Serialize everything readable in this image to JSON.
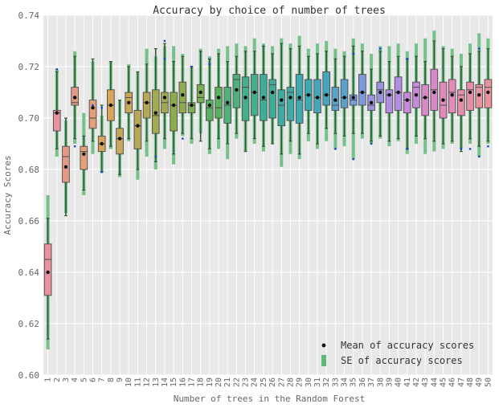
{
  "chart_data": {
    "type": "box",
    "title": "Accuracy by choice of number of trees",
    "xlabel": "Number of trees in the Random Forest",
    "ylabel": "Accuracy Scores",
    "ylim": [
      0.6,
      0.74
    ],
    "yticks": [
      "0.60",
      "0.62",
      "0.64",
      "0.66",
      "0.68",
      "0.70",
      "0.72",
      "0.74"
    ],
    "grid": true,
    "legend_position": "bottom-right",
    "legend": [
      {
        "label": "Mean of accuracy scores",
        "marker": "dot"
      },
      {
        "label": "SE of accuracy scores",
        "marker": "bar"
      }
    ],
    "series": [
      {
        "trees": "1",
        "q1": 0.631,
        "median": 0.645,
        "q3": 0.651,
        "wlo": 0.614,
        "whi": 0.661,
        "mean": 0.64,
        "se_lo": 0.61,
        "se_hi": 0.67,
        "color": "#e8939e"
      },
      {
        "trees": "2",
        "q1": 0.695,
        "median": 0.702,
        "q3": 0.703,
        "wlo": 0.688,
        "whi": 0.718,
        "mean": 0.702,
        "se_lo": 0.685,
        "se_hi": 0.719,
        "color": "#e8939e"
      },
      {
        "trees": "3",
        "q1": 0.675,
        "median": 0.685,
        "q3": 0.689,
        "wlo": 0.662,
        "whi": 0.7,
        "mean": 0.681,
        "se_lo": 0.663,
        "se_hi": 0.699,
        "color": "#e29a86"
      },
      {
        "trees": "4",
        "q1": 0.705,
        "median": 0.706,
        "q3": 0.712,
        "wlo": 0.692,
        "whi": 0.724,
        "mean": 0.708,
        "se_lo": 0.69,
        "se_hi": 0.726,
        "color": "#e29a86"
      },
      {
        "trees": "5",
        "q1": 0.68,
        "median": 0.687,
        "q3": 0.689,
        "wlo": 0.672,
        "whi": 0.693,
        "mean": 0.686,
        "se_lo": 0.67,
        "se_hi": 0.702,
        "color": "#e3a07a"
      },
      {
        "trees": "6",
        "q1": 0.696,
        "median": 0.7,
        "q3": 0.707,
        "wlo": 0.691,
        "whi": 0.723,
        "mean": 0.704,
        "se_lo": 0.686,
        "se_hi": 0.722,
        "color": "#e3a07a"
      },
      {
        "trees": "7",
        "q1": 0.687,
        "median": 0.69,
        "q3": 0.693,
        "wlo": 0.679,
        "whi": 0.705,
        "mean": 0.69,
        "se_lo": 0.679,
        "se_hi": 0.701,
        "color": "#d6a45a"
      },
      {
        "trees": "8",
        "q1": 0.699,
        "median": 0.705,
        "q3": 0.711,
        "wlo": 0.689,
        "whi": 0.722,
        "mean": 0.705,
        "se_lo": 0.688,
        "se_hi": 0.722,
        "color": "#d6a45a"
      },
      {
        "trees": "9",
        "q1": 0.686,
        "median": 0.692,
        "q3": 0.696,
        "wlo": 0.678,
        "whi": 0.707,
        "mean": 0.692,
        "se_lo": 0.677,
        "se_hi": 0.707,
        "color": "#c7a75a"
      },
      {
        "trees": "10",
        "q1": 0.702,
        "median": 0.708,
        "q3": 0.71,
        "wlo": 0.692,
        "whi": 0.72,
        "mean": 0.706,
        "se_lo": 0.691,
        "se_hi": 0.721,
        "color": "#c7a75a"
      },
      {
        "trees": "11",
        "q1": 0.688,
        "median": 0.697,
        "q3": 0.703,
        "wlo": 0.68,
        "whi": 0.718,
        "mean": 0.697,
        "se_lo": 0.676,
        "se_hi": 0.718,
        "color": "#b5a856"
      },
      {
        "trees": "12",
        "q1": 0.7,
        "median": 0.706,
        "q3": 0.71,
        "wlo": 0.691,
        "whi": 0.721,
        "mean": 0.706,
        "se_lo": 0.685,
        "se_hi": 0.727,
        "color": "#b5a856"
      },
      {
        "trees": "13",
        "q1": 0.694,
        "median": 0.701,
        "q3": 0.711,
        "wlo": 0.683,
        "whi": 0.727,
        "mean": 0.702,
        "se_lo": 0.68,
        "se_hi": 0.724,
        "color": "#a2a950"
      },
      {
        "trees": "14",
        "q1": 0.702,
        "median": 0.706,
        "q3": 0.71,
        "wlo": 0.692,
        "whi": 0.729,
        "mean": 0.708,
        "se_lo": 0.688,
        "se_hi": 0.728,
        "color": "#a2a950"
      },
      {
        "trees": "15",
        "q1": 0.695,
        "median": 0.705,
        "q3": 0.71,
        "wlo": 0.686,
        "whi": 0.722,
        "mean": 0.705,
        "se_lo": 0.682,
        "se_hi": 0.728,
        "color": "#8eab50"
      },
      {
        "trees": "16",
        "q1": 0.702,
        "median": 0.706,
        "q3": 0.714,
        "wlo": 0.694,
        "whi": 0.724,
        "mean": 0.709,
        "se_lo": 0.693,
        "se_hi": 0.725,
        "color": "#8eab50"
      },
      {
        "trees": "17",
        "q1": 0.702,
        "median": 0.705,
        "q3": 0.706,
        "wlo": 0.692,
        "whi": 0.72,
        "mean": 0.705,
        "se_lo": 0.69,
        "se_hi": 0.72,
        "color": "#7cae54"
      },
      {
        "trees": "18",
        "q1": 0.706,
        "median": 0.708,
        "q3": 0.713,
        "wlo": 0.691,
        "whi": 0.726,
        "mean": 0.71,
        "se_lo": 0.694,
        "se_hi": 0.727,
        "color": "#7cae54"
      },
      {
        "trees": "19",
        "q1": 0.699,
        "median": 0.704,
        "q3": 0.707,
        "wlo": 0.688,
        "whi": 0.723,
        "mean": 0.705,
        "se_lo": 0.686,
        "se_hi": 0.724,
        "color": "#5bb061"
      },
      {
        "trees": "20",
        "q1": 0.7,
        "median": 0.704,
        "q3": 0.712,
        "wlo": 0.692,
        "whi": 0.725,
        "mean": 0.708,
        "se_lo": 0.688,
        "se_hi": 0.727,
        "color": "#5bb061"
      },
      {
        "trees": "21",
        "q1": 0.698,
        "median": 0.705,
        "q3": 0.712,
        "wlo": 0.69,
        "whi": 0.722,
        "mean": 0.706,
        "se_lo": 0.684,
        "se_hi": 0.728,
        "color": "#4fb07a"
      },
      {
        "trees": "22",
        "q1": 0.704,
        "median": 0.715,
        "q3": 0.717,
        "wlo": 0.694,
        "whi": 0.724,
        "mean": 0.711,
        "se_lo": 0.692,
        "se_hi": 0.729,
        "color": "#4fb07a"
      },
      {
        "trees": "23",
        "q1": 0.699,
        "median": 0.712,
        "q3": 0.716,
        "wlo": 0.687,
        "whi": 0.726,
        "mean": 0.708,
        "se_lo": 0.687,
        "se_hi": 0.728,
        "color": "#45af8a"
      },
      {
        "trees": "24",
        "q1": 0.701,
        "median": 0.71,
        "q3": 0.717,
        "wlo": 0.692,
        "whi": 0.726,
        "mean": 0.71,
        "se_lo": 0.69,
        "se_hi": 0.731,
        "color": "#45af8a"
      },
      {
        "trees": "25",
        "q1": 0.699,
        "median": 0.707,
        "q3": 0.717,
        "wlo": 0.689,
        "whi": 0.728,
        "mean": 0.708,
        "se_lo": 0.687,
        "se_hi": 0.729,
        "color": "#3fad96"
      },
      {
        "trees": "26",
        "q1": 0.7,
        "median": 0.713,
        "q3": 0.715,
        "wlo": 0.69,
        "whi": 0.725,
        "mean": 0.71,
        "se_lo": 0.69,
        "se_hi": 0.728,
        "color": "#3fad96"
      },
      {
        "trees": "27",
        "q1": 0.697,
        "median": 0.705,
        "q3": 0.711,
        "wlo": 0.686,
        "whi": 0.729,
        "mean": 0.707,
        "se_lo": 0.681,
        "se_hi": 0.731,
        "color": "#3eaba3"
      },
      {
        "trees": "28",
        "q1": 0.699,
        "median": 0.71,
        "q3": 0.712,
        "wlo": 0.691,
        "whi": 0.727,
        "mean": 0.708,
        "se_lo": 0.686,
        "se_hi": 0.729,
        "color": "#3eaba3"
      },
      {
        "trees": "29",
        "q1": 0.698,
        "median": 0.707,
        "q3": 0.717,
        "wlo": 0.686,
        "whi": 0.728,
        "mean": 0.708,
        "se_lo": 0.684,
        "se_hi": 0.732,
        "color": "#3ea9ae"
      },
      {
        "trees": "30",
        "q1": 0.703,
        "median": 0.709,
        "q3": 0.715,
        "wlo": 0.694,
        "whi": 0.724,
        "mean": 0.709,
        "se_lo": 0.691,
        "se_hi": 0.727,
        "color": "#3ea9ae"
      },
      {
        "trees": "31",
        "q1": 0.702,
        "median": 0.708,
        "q3": 0.715,
        "wlo": 0.69,
        "whi": 0.725,
        "mean": 0.708,
        "se_lo": 0.688,
        "se_hi": 0.729,
        "color": "#45a6bb"
      },
      {
        "trees": "32",
        "q1": 0.705,
        "median": 0.709,
        "q3": 0.718,
        "wlo": 0.696,
        "whi": 0.726,
        "mean": 0.709,
        "se_lo": 0.691,
        "se_hi": 0.73,
        "color": "#45a6bb"
      },
      {
        "trees": "33",
        "q1": 0.703,
        "median": 0.705,
        "q3": 0.712,
        "wlo": 0.694,
        "whi": 0.723,
        "mean": 0.707,
        "se_lo": 0.688,
        "se_hi": 0.727,
        "color": "#5aa1cc"
      },
      {
        "trees": "34",
        "q1": 0.704,
        "median": 0.708,
        "q3": 0.715,
        "wlo": 0.693,
        "whi": 0.724,
        "mean": 0.708,
        "se_lo": 0.689,
        "se_hi": 0.726,
        "color": "#5aa1cc"
      },
      {
        "trees": "35",
        "q1": 0.705,
        "median": 0.707,
        "q3": 0.709,
        "wlo": 0.694,
        "whi": 0.728,
        "mean": 0.708,
        "se_lo": 0.684,
        "se_hi": 0.731,
        "color": "#7a9ada"
      },
      {
        "trees": "36",
        "q1": 0.705,
        "median": 0.71,
        "q3": 0.717,
        "wlo": 0.694,
        "whi": 0.726,
        "mean": 0.71,
        "se_lo": 0.692,
        "se_hi": 0.729,
        "color": "#7a9ada"
      },
      {
        "trees": "37",
        "q1": 0.703,
        "median": 0.705,
        "q3": 0.709,
        "wlo": 0.691,
        "whi": 0.719,
        "mean": 0.706,
        "se_lo": 0.69,
        "se_hi": 0.725,
        "color": "#9a94e0"
      },
      {
        "trees": "38",
        "q1": 0.706,
        "median": 0.711,
        "q3": 0.714,
        "wlo": 0.693,
        "whi": 0.726,
        "mean": 0.71,
        "se_lo": 0.692,
        "se_hi": 0.728,
        "color": "#9a94e0"
      },
      {
        "trees": "39",
        "q1": 0.702,
        "median": 0.709,
        "q3": 0.711,
        "wlo": 0.691,
        "whi": 0.722,
        "mean": 0.709,
        "se_lo": 0.689,
        "se_hi": 0.728,
        "color": "#b18ee0"
      },
      {
        "trees": "40",
        "q1": 0.703,
        "median": 0.71,
        "q3": 0.716,
        "wlo": 0.692,
        "whi": 0.724,
        "mean": 0.71,
        "se_lo": 0.691,
        "se_hi": 0.729,
        "color": "#b18ee0"
      },
      {
        "trees": "41",
        "q1": 0.702,
        "median": 0.707,
        "q3": 0.71,
        "wlo": 0.688,
        "whi": 0.723,
        "mean": 0.707,
        "se_lo": 0.686,
        "se_hi": 0.726,
        "color": "#c78ad8"
      },
      {
        "trees": "42",
        "q1": 0.704,
        "median": 0.712,
        "q3": 0.714,
        "wlo": 0.693,
        "whi": 0.724,
        "mean": 0.709,
        "se_lo": 0.69,
        "se_hi": 0.729,
        "color": "#c78ad8"
      },
      {
        "trees": "43",
        "q1": 0.701,
        "median": 0.708,
        "q3": 0.713,
        "wlo": 0.692,
        "whi": 0.722,
        "mean": 0.708,
        "se_lo": 0.686,
        "se_hi": 0.731,
        "color": "#d889c8"
      },
      {
        "trees": "44",
        "q1": 0.703,
        "median": 0.711,
        "q3": 0.719,
        "wlo": 0.691,
        "whi": 0.73,
        "mean": 0.71,
        "se_lo": 0.687,
        "se_hi": 0.734,
        "color": "#d889c8"
      },
      {
        "trees": "45",
        "q1": 0.7,
        "median": 0.705,
        "q3": 0.714,
        "wlo": 0.69,
        "whi": 0.727,
        "mean": 0.707,
        "se_lo": 0.688,
        "se_hi": 0.728,
        "color": "#e28bb8"
      },
      {
        "trees": "46",
        "q1": 0.702,
        "median": 0.71,
        "q3": 0.715,
        "wlo": 0.691,
        "whi": 0.724,
        "mean": 0.709,
        "se_lo": 0.69,
        "se_hi": 0.727,
        "color": "#e28bb8"
      },
      {
        "trees": "47",
        "q1": 0.701,
        "median": 0.709,
        "q3": 0.711,
        "wlo": 0.687,
        "whi": 0.72,
        "mean": 0.707,
        "se_lo": 0.688,
        "se_hi": 0.725,
        "color": "#e68ea8"
      },
      {
        "trees": "48",
        "q1": 0.703,
        "median": 0.711,
        "q3": 0.714,
        "wlo": 0.692,
        "whi": 0.725,
        "mean": 0.71,
        "se_lo": 0.69,
        "se_hi": 0.729,
        "color": "#e68ea8"
      },
      {
        "trees": "49",
        "q1": 0.704,
        "median": 0.712,
        "q3": 0.713,
        "wlo": 0.689,
        "whi": 0.726,
        "mean": 0.709,
        "se_lo": 0.685,
        "se_hi": 0.733,
        "color": "#e8939e"
      },
      {
        "trees": "50",
        "q1": 0.704,
        "median": 0.712,
        "q3": 0.715,
        "wlo": 0.691,
        "whi": 0.727,
        "mean": 0.71,
        "se_lo": 0.69,
        "se_hi": 0.731,
        "color": "#e8939e"
      }
    ],
    "outliers": [
      {
        "trees": "2",
        "value": 0.719
      },
      {
        "trees": "4",
        "value": 0.689
      },
      {
        "trees": "6",
        "value": 0.705
      },
      {
        "trees": "7",
        "value": 0.704
      },
      {
        "trees": "7",
        "value": 0.679
      },
      {
        "trees": "13",
        "value": 0.685
      },
      {
        "trees": "14",
        "value": 0.73
      },
      {
        "trees": "14",
        "value": 0.723
      },
      {
        "trees": "16",
        "value": 0.692
      },
      {
        "trees": "17",
        "value": 0.72
      },
      {
        "trees": "19",
        "value": 0.721
      },
      {
        "trees": "33",
        "value": 0.688
      },
      {
        "trees": "35",
        "value": 0.684
      },
      {
        "trees": "35",
        "value": 0.725
      },
      {
        "trees": "37",
        "value": 0.69
      },
      {
        "trees": "38",
        "value": 0.727
      },
      {
        "trees": "41",
        "value": 0.688
      },
      {
        "trees": "41",
        "value": 0.723
      },
      {
        "trees": "47",
        "value": 0.688
      },
      {
        "trees": "48",
        "value": 0.688
      },
      {
        "trees": "49",
        "value": 0.685
      },
      {
        "trees": "49",
        "value": 0.727
      },
      {
        "trees": "50",
        "value": 0.689
      }
    ],
    "colors": {
      "plot_background": "#e8e8e8",
      "grid": "#ffffff",
      "se_bar": "#5fb878",
      "whisker": "#2f5a35",
      "mean_dot": "#111111",
      "outlier": "#1f3fd1",
      "axis_text": "#666666"
    }
  }
}
